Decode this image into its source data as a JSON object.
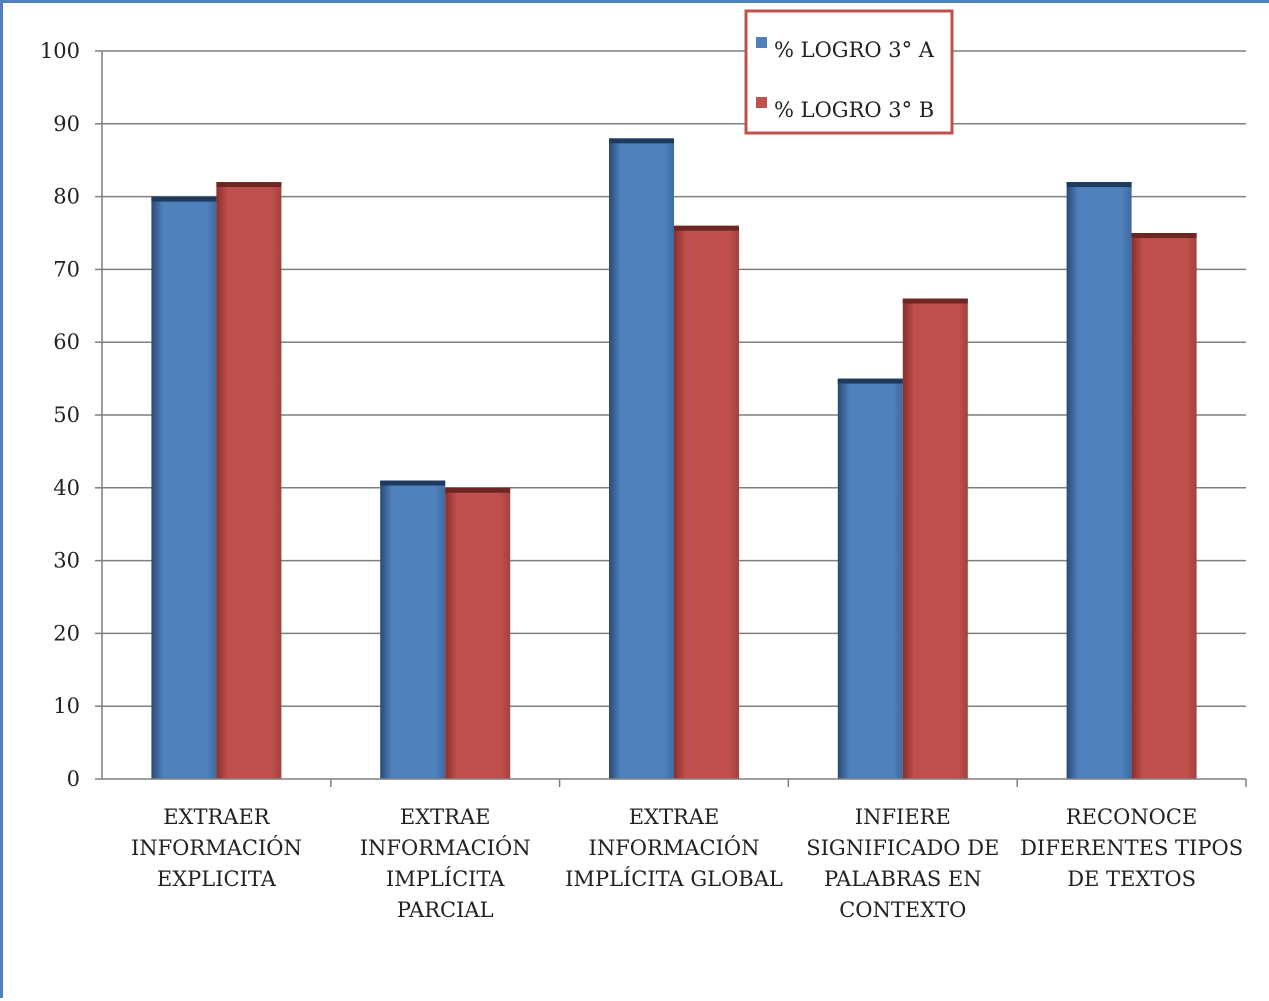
{
  "chart_data": {
    "type": "bar",
    "categories": [
      [
        "EXTRAER",
        "INFORMACIÓN",
        "EXPLICITA"
      ],
      [
        "EXTRAE",
        "INFORMACIÓN",
        "IMPLÍCITA",
        "PARCIAL"
      ],
      [
        "EXTRAE",
        "INFORMACIÓN",
        "IMPLÍCITA  GLOBAL"
      ],
      [
        "INFIERE",
        "SIGNIFICADO DE",
        "PALABRAS EN",
        "CONTEXTO"
      ],
      [
        "RECONOCE",
        "DIFERENTES TIPOS",
        "DE TEXTOS"
      ]
    ],
    "series": [
      {
        "name": "%  LOGRO  3° A",
        "color": "#4f81bd",
        "values": [
          80,
          41,
          88,
          55,
          82
        ]
      },
      {
        "name": "%  LOGRO  3° B",
        "color": "#c0504d",
        "values": [
          82,
          40,
          76,
          66,
          75
        ]
      }
    ],
    "ylim": [
      0,
      100
    ],
    "yticks": [
      0,
      10,
      20,
      30,
      40,
      50,
      60,
      70,
      80,
      90,
      100
    ],
    "grid": true,
    "legend_position": "top-right",
    "legend_border_color": "#c0504d",
    "frame_color": "#4f81bd"
  }
}
